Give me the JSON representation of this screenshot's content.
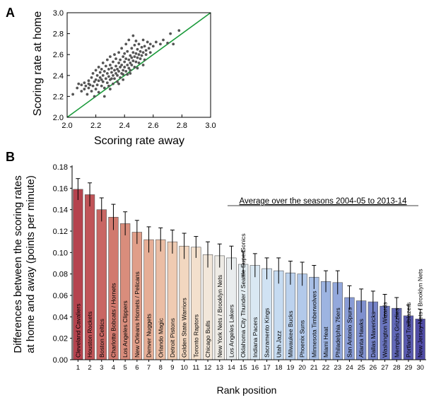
{
  "chart_data": [
    {
      "panel_label": "A",
      "type": "scatter",
      "xlabel": "Scoring rate away",
      "ylabel": "Scoring rate at home",
      "xlim": [
        2.0,
        3.0
      ],
      "ylim": [
        2.0,
        3.0
      ],
      "xticks": [
        "2.0",
        "2.2",
        "2.4",
        "2.6",
        "2.8",
        "3.0"
      ],
      "yticks": [
        "2.0",
        "2.2",
        "2.4",
        "2.6",
        "2.8",
        "3.0"
      ],
      "grid": false,
      "reference_line": {
        "from": [
          2.0,
          2.0
        ],
        "to": [
          3.0,
          3.0
        ],
        "color": "#1a9a3a"
      },
      "point_color": "#555555",
      "points": [
        [
          2.04,
          2.22
        ],
        [
          2.07,
          2.28
        ],
        [
          2.08,
          2.32
        ],
        [
          2.1,
          2.25
        ],
        [
          2.1,
          2.31
        ],
        [
          2.12,
          2.27
        ],
        [
          2.12,
          2.33
        ],
        [
          2.13,
          2.3
        ],
        [
          2.14,
          2.22
        ],
        [
          2.15,
          2.28
        ],
        [
          2.15,
          2.35
        ],
        [
          2.16,
          2.31
        ],
        [
          2.17,
          2.25
        ],
        [
          2.17,
          2.38
        ],
        [
          2.18,
          2.3
        ],
        [
          2.18,
          2.42
        ],
        [
          2.19,
          2.34
        ],
        [
          2.2,
          2.27
        ],
        [
          2.2,
          2.36
        ],
        [
          2.2,
          2.45
        ],
        [
          2.21,
          2.31
        ],
        [
          2.21,
          2.4
        ],
        [
          2.22,
          2.24
        ],
        [
          2.22,
          2.35
        ],
        [
          2.22,
          2.48
        ],
        [
          2.23,
          2.38
        ],
        [
          2.23,
          2.43
        ],
        [
          2.24,
          2.3
        ],
        [
          2.24,
          2.46
        ],
        [
          2.25,
          2.34
        ],
        [
          2.25,
          2.4
        ],
        [
          2.25,
          2.52
        ],
        [
          2.26,
          2.28
        ],
        [
          2.26,
          2.44
        ],
        [
          2.27,
          2.37
        ],
        [
          2.27,
          2.49
        ],
        [
          2.28,
          2.33
        ],
        [
          2.28,
          2.42
        ],
        [
          2.28,
          2.55
        ],
        [
          2.29,
          2.46
        ],
        [
          2.29,
          2.39
        ],
        [
          2.3,
          2.27
        ],
        [
          2.3,
          2.36
        ],
        [
          2.3,
          2.5
        ],
        [
          2.3,
          2.58
        ],
        [
          2.31,
          2.43
        ],
        [
          2.31,
          2.47
        ],
        [
          2.32,
          2.32
        ],
        [
          2.32,
          2.4
        ],
        [
          2.32,
          2.53
        ],
        [
          2.33,
          2.45
        ],
        [
          2.33,
          2.37
        ],
        [
          2.33,
          2.6
        ],
        [
          2.34,
          2.42
        ],
        [
          2.34,
          2.49
        ],
        [
          2.34,
          2.56
        ],
        [
          2.35,
          2.34
        ],
        [
          2.35,
          2.46
        ],
        [
          2.35,
          2.4
        ],
        [
          2.36,
          2.52
        ],
        [
          2.36,
          2.44
        ],
        [
          2.36,
          2.62
        ],
        [
          2.37,
          2.38
        ],
        [
          2.37,
          2.48
        ],
        [
          2.37,
          2.55
        ],
        [
          2.38,
          2.42
        ],
        [
          2.38,
          2.5
        ],
        [
          2.38,
          2.66
        ],
        [
          2.39,
          2.45
        ],
        [
          2.39,
          2.58
        ],
        [
          2.39,
          2.36
        ],
        [
          2.4,
          2.48
        ],
        [
          2.4,
          2.53
        ],
        [
          2.4,
          2.61
        ],
        [
          2.41,
          2.44
        ],
        [
          2.41,
          2.56
        ],
        [
          2.41,
          2.7
        ],
        [
          2.42,
          2.5
        ],
        [
          2.42,
          2.41
        ],
        [
          2.42,
          2.63
        ],
        [
          2.43,
          2.47
        ],
        [
          2.43,
          2.55
        ],
        [
          2.43,
          2.74
        ],
        [
          2.44,
          2.52
        ],
        [
          2.44,
          2.59
        ],
        [
          2.44,
          2.45
        ],
        [
          2.45,
          2.57
        ],
        [
          2.45,
          2.66
        ],
        [
          2.45,
          2.5
        ],
        [
          2.46,
          2.62
        ],
        [
          2.46,
          2.54
        ],
        [
          2.46,
          2.78
        ],
        [
          2.47,
          2.58
        ],
        [
          2.47,
          2.48
        ],
        [
          2.47,
          2.69
        ],
        [
          2.48,
          2.61
        ],
        [
          2.48,
          2.53
        ],
        [
          2.48,
          2.73
        ],
        [
          2.49,
          2.57
        ],
        [
          2.49,
          2.65
        ],
        [
          2.5,
          2.6
        ],
        [
          2.5,
          2.52
        ],
        [
          2.5,
          2.7
        ],
        [
          2.51,
          2.63
        ],
        [
          2.51,
          2.56
        ],
        [
          2.52,
          2.67
        ],
        [
          2.52,
          2.59
        ],
        [
          2.53,
          2.62
        ],
        [
          2.53,
          2.74
        ],
        [
          2.54,
          2.55
        ],
        [
          2.54,
          2.68
        ],
        [
          2.55,
          2.64
        ],
        [
          2.55,
          2.6
        ],
        [
          2.56,
          2.72
        ],
        [
          2.57,
          2.66
        ],
        [
          2.58,
          2.62
        ],
        [
          2.58,
          2.7
        ],
        [
          2.6,
          2.68
        ],
        [
          2.62,
          2.72
        ],
        [
          2.65,
          2.7
        ],
        [
          2.67,
          2.74
        ],
        [
          2.7,
          2.71
        ],
        [
          2.72,
          2.8
        ],
        [
          2.74,
          2.7
        ],
        [
          2.78,
          2.83
        ],
        [
          2.26,
          2.2
        ],
        [
          2.29,
          2.3
        ],
        [
          2.36,
          2.32
        ],
        [
          2.19,
          2.2
        ],
        [
          2.15,
          2.32
        ],
        [
          2.24,
          2.36
        ],
        [
          2.31,
          2.37
        ],
        [
          2.39,
          2.41
        ],
        [
          2.44,
          2.42
        ],
        [
          2.49,
          2.47
        ],
        [
          2.53,
          2.5
        ]
      ]
    },
    {
      "panel_label": "B",
      "type": "bar",
      "xlabel": "Rank position",
      "ylabel_line1": "Differences between the scoring rates",
      "ylabel_line2": "at home and away (points per minute)",
      "annotation": "Average over the seasons 2004-05 to 2013-14",
      "ylim": [
        0.0,
        0.18
      ],
      "yticks": [
        "0.00",
        "0.02",
        "0.04",
        "0.06",
        "0.08",
        "0.10",
        "0.12",
        "0.14",
        "0.16",
        "0.18"
      ],
      "categories": [
        "1",
        "2",
        "3",
        "4",
        "5",
        "6",
        "7",
        "8",
        "9",
        "10",
        "11",
        "12",
        "13",
        "14",
        "15",
        "16",
        "17",
        "18",
        "19",
        "20",
        "21",
        "22",
        "23",
        "24",
        "25",
        "26",
        "27",
        "28",
        "29",
        "30"
      ],
      "teams": [
        "Cleveland Cavaliers",
        "Houston Rockets",
        "Boston Celtics",
        "Charlotte Bobcats / Hornets",
        "Los Angeles Clippers",
        "New Orleans Hornets / Pelicans",
        "Denver Nuggets",
        "Orlando Magic",
        "Detroit Pistons",
        "Golden State Warriors",
        "Toronto Raptors",
        "Chicago Bulls",
        "New York Nets / Brooklyn Nets",
        "Los Angeles Lakers",
        "Oklahoma City Thunder / Seattle SuperSonics",
        "Indiana Pacers",
        "Sacramento Kings",
        "Utah Jazz",
        "Milwaukee Bucks",
        "Phoenix Suns",
        "Minnesota Timberwolves",
        "Miami Heat",
        "Philadelphia 76ers",
        "San Antonio Spurs",
        "Atlanta Hawks",
        "Dallas Mavericks",
        "Washington Wizards",
        "Memphis Grizzlies",
        "Portland Trailblazers",
        "New Jersey Nets / Brooklyn Nets"
      ],
      "values": [
        0.159,
        0.154,
        0.14,
        0.133,
        0.127,
        0.119,
        0.112,
        0.112,
        0.11,
        0.106,
        0.105,
        0.098,
        0.097,
        0.095,
        0.089,
        0.088,
        0.085,
        0.083,
        0.081,
        0.08,
        0.077,
        0.073,
        0.072,
        0.058,
        0.055,
        0.054,
        0.05,
        0.048,
        0.041,
        0.038
      ],
      "errors": [
        0.01,
        0.011,
        0.011,
        0.012,
        0.011,
        0.011,
        0.012,
        0.011,
        0.011,
        0.012,
        0.01,
        0.012,
        0.011,
        0.011,
        0.012,
        0.011,
        0.01,
        0.012,
        0.011,
        0.011,
        0.011,
        0.01,
        0.011,
        0.011,
        0.011,
        0.01,
        0.011,
        0.01,
        0.01,
        0.009
      ],
      "colors": [
        "#b5434e",
        "#c05458",
        "#c96663",
        "#d17a6f",
        "#d98d7c",
        "#e09e89",
        "#e6ae96",
        "#ebbda4",
        "#efcbb2",
        "#f2d7c0",
        "#f3e0cd",
        "#f2e7da",
        "#eeebe5",
        "#e9edee",
        "#e2ecf1",
        "#d9e8f3",
        "#d0e2f3",
        "#c6dbf1",
        "#bcd2ee",
        "#b2c9ea",
        "#a8bfe6",
        "#9db4e1",
        "#93a8dc",
        "#899cd6",
        "#7f90cf",
        "#7583c8",
        "#6b76c0",
        "#6268b8",
        "#595aaf",
        "#504ca6"
      ]
    }
  ]
}
